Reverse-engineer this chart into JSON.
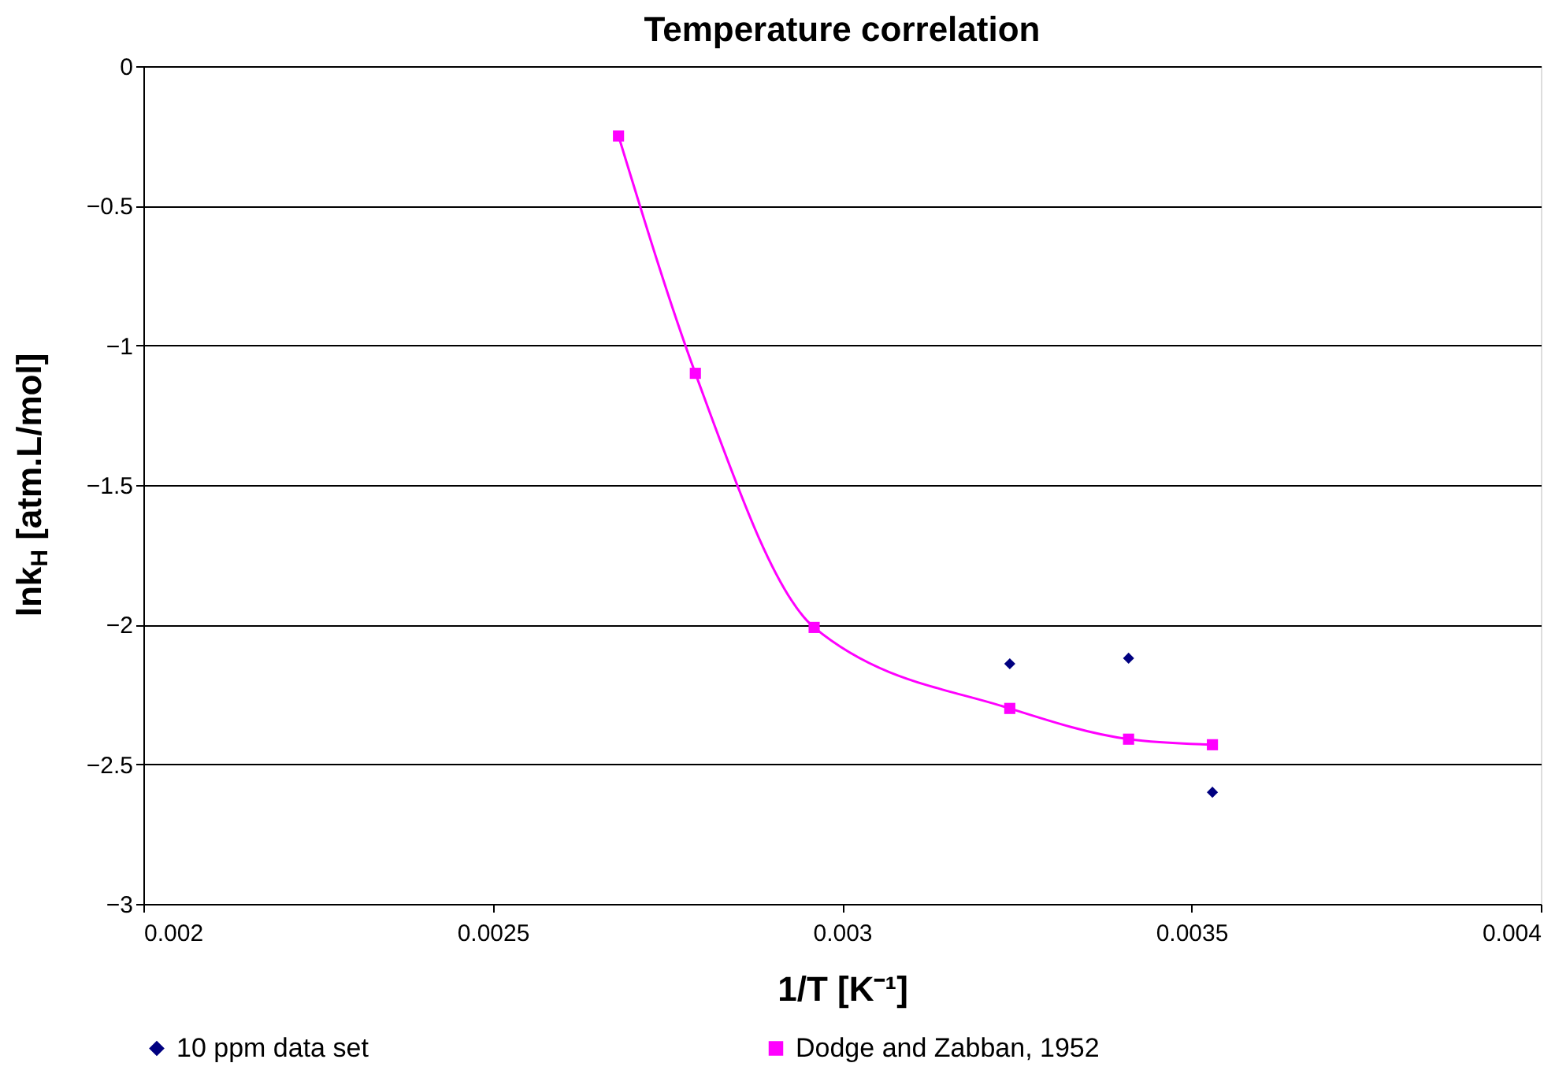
{
  "chart_data": {
    "type": "scatter",
    "title": "Temperature correlation",
    "xlabel": "1/T [K⁻¹]",
    "ylabel": "lnk$_{H}$ [atm.L/mol]",
    "xlim": [
      0.002,
      0.004
    ],
    "xticks": [
      0.002,
      0.0025,
      0.003,
      0.0035,
      0.004
    ],
    "ylim": [
      -3,
      0
    ],
    "yticks": [
      -3,
      -2.5,
      -2,
      -1.5,
      -1,
      -0.5,
      0
    ],
    "grid": "y",
    "legend": "bottom",
    "series": [
      {
        "name": "10 ppm data set",
        "type": "scatter",
        "marker": "diamond",
        "color": "#000080",
        "x": [
          0.00324,
          0.00341,
          0.00353
        ],
        "values": [
          -2.14,
          -2.12,
          -2.6
        ]
      },
      {
        "name": "Dodge and Zabban, 1952",
        "type": "line",
        "marker": "square",
        "color": "#ff00ff",
        "x": [
          0.00268,
          0.00279,
          0.00296,
          0.00324,
          0.00341,
          0.00353
        ],
        "values": [
          -0.25,
          -1.1,
          -2.01,
          -2.3,
          -2.41,
          -2.43
        ]
      }
    ]
  }
}
